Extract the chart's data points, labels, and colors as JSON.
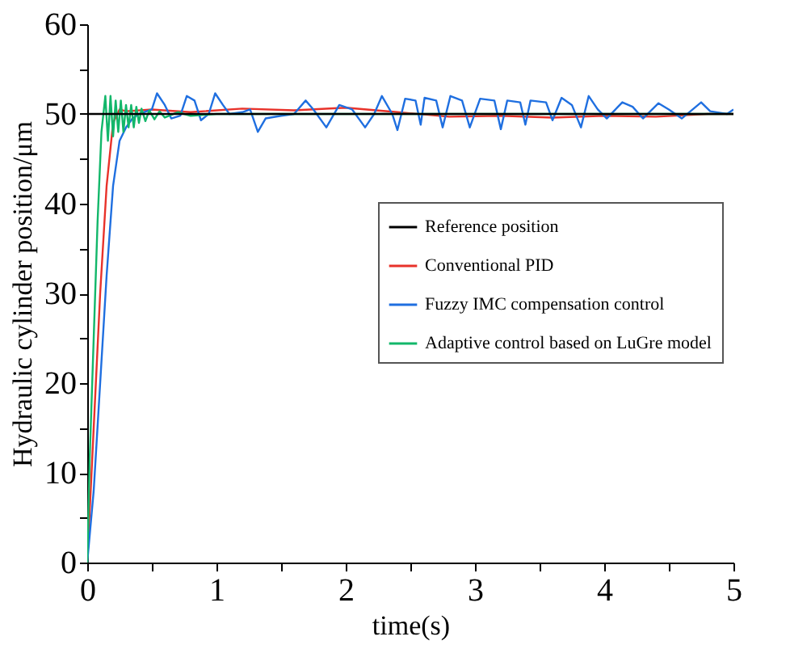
{
  "chart_data": {
    "type": "line",
    "xlabel": "time(s)",
    "ylabel": "Hydraulic cylinder position/μm",
    "xlim": [
      0,
      5
    ],
    "ylim": [
      0,
      60
    ],
    "xticks": [
      0,
      {
        "value": 0.5,
        "label": null
      },
      1,
      {
        "value": 1.5,
        "label": null
      },
      2,
      {
        "value": 2.5,
        "label": null
      },
      3,
      {
        "value": 3.5,
        "label": null
      },
      4,
      {
        "value": 4.5,
        "label": null
      },
      5
    ],
    "yticks": [
      0,
      {
        "value": 5,
        "label": null
      },
      10,
      {
        "value": 15,
        "label": null
      },
      20,
      {
        "value": 25,
        "label": null
      },
      30,
      {
        "value": 35,
        "label": null
      },
      40,
      {
        "value": 45,
        "label": null
      },
      50,
      {
        "value": 55,
        "label": null
      },
      60
    ],
    "grid": false,
    "legend": "right",
    "line_style": "solid",
    "marker": "none",
    "series": [
      {
        "name": "Reference position",
        "color": "#000000",
        "x": [
          0,
          5
        ],
        "values": [
          50,
          50
        ]
      },
      {
        "name": "Conventional PID",
        "color": "#e8322a",
        "x": [
          0,
          0.05,
          0.1,
          0.15,
          0.2,
          0.25,
          0.3,
          0.5,
          0.8,
          1.2,
          1.6,
          2.0,
          2.4,
          2.8,
          3.2,
          3.6,
          4.0,
          4.4,
          4.8,
          5
        ],
        "values": [
          0,
          15,
          30,
          42,
          49,
          50.5,
          50.3,
          50.5,
          50.2,
          50.6,
          50.4,
          50.7,
          50.2,
          49.7,
          49.8,
          49.6,
          49.8,
          49.7,
          50,
          50
        ]
      },
      {
        "name": "Fuzzy IMC compensation control",
        "color": "#1f6fe0",
        "x": [
          0,
          0.05,
          0.1,
          0.15,
          0.2,
          0.25,
          0.3,
          0.35,
          0.4,
          0.5,
          0.54,
          0.6,
          0.65,
          0.72,
          0.77,
          0.83,
          0.88,
          0.94,
          0.99,
          1.05,
          1.1,
          1.2,
          1.26,
          1.32,
          1.38,
          1.5,
          1.6,
          1.69,
          1.75,
          1.85,
          1.95,
          2.05,
          2.15,
          2.22,
          2.28,
          2.36,
          2.4,
          2.46,
          2.54,
          2.58,
          2.61,
          2.7,
          2.75,
          2.81,
          2.9,
          2.96,
          3.04,
          3.15,
          3.2,
          3.25,
          3.35,
          3.39,
          3.43,
          3.55,
          3.6,
          3.67,
          3.75,
          3.82,
          3.88,
          3.95,
          4.02,
          4.14,
          4.22,
          4.3,
          4.42,
          4.5,
          4.6,
          4.75,
          4.82,
          4.95,
          5
        ],
        "values": [
          0,
          8,
          20,
          32,
          42,
          47,
          48.5,
          49.5,
          50,
          50.5,
          52.3,
          51,
          49.5,
          49.8,
          52,
          51.5,
          49.3,
          50,
          52.3,
          51,
          50,
          50.2,
          50.5,
          48,
          49.5,
          49.8,
          50,
          51.5,
          50.5,
          48.5,
          51,
          50.5,
          48.5,
          50,
          52,
          50,
          48.2,
          51.7,
          51.5,
          48.8,
          51.8,
          51.5,
          48.5,
          52,
          51.5,
          48.5,
          51.7,
          51.5,
          48.3,
          51.5,
          51.3,
          48.8,
          51.5,
          51.3,
          49.3,
          51.8,
          51,
          48.5,
          52,
          50.5,
          49.5,
          51.3,
          50.8,
          49.5,
          51.2,
          50.5,
          49.5,
          51.3,
          50.3,
          50,
          50.5
        ]
      },
      {
        "name": "Adaptive control based on LuGre model",
        "color": "#12b76a",
        "x": [
          0,
          0.02,
          0.05,
          0.08,
          0.11,
          0.14,
          0.16,
          0.18,
          0.2,
          0.22,
          0.24,
          0.26,
          0.28,
          0.3,
          0.32,
          0.34,
          0.36,
          0.38,
          0.4,
          0.42,
          0.45,
          0.48,
          0.52,
          0.56,
          0.6,
          0.7,
          0.8,
          1.0,
          5
        ],
        "values": [
          0,
          12,
          25,
          38,
          48,
          52,
          47,
          52,
          47.5,
          51.5,
          48,
          51.5,
          48,
          51,
          48.5,
          51,
          48.5,
          50.8,
          49,
          50.6,
          49.2,
          50.4,
          49.4,
          50.3,
          49.6,
          50.2,
          49.8,
          50,
          50
        ]
      }
    ]
  }
}
